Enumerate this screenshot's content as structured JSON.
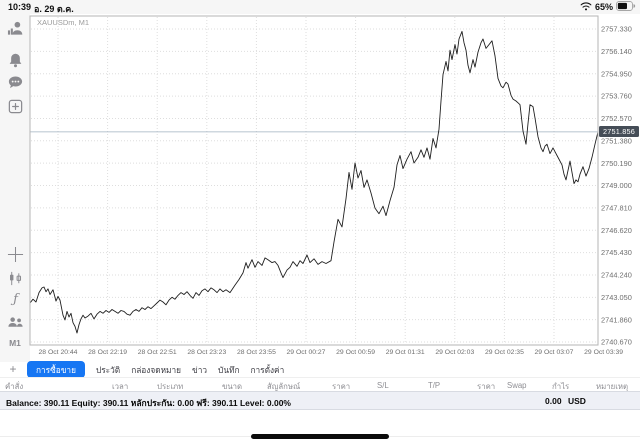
{
  "status_bar": {
    "time": "10:39",
    "date": "อ. 29 ต.ค.",
    "battery_percent": "65%",
    "icons": [
      "wifi-icon",
      "battery-icon"
    ]
  },
  "toolbar": {
    "icons": [
      "account-icon",
      "notifications-icon",
      "chat-icon",
      "new-order-icon",
      "crosshair-icon",
      "indicators-icon",
      "function-icon",
      "objects-icon"
    ],
    "function_glyph": "ƒ",
    "timeframe_label": "M1"
  },
  "chart": {
    "symbol_label": "XAUUSDm, M1",
    "current_price": "2751.856",
    "colors": {
      "line": "#1f1f1f",
      "grid": "#dedede",
      "border": "#b5b5b5",
      "price_line": "#9fb0bf",
      "price_badge_bg": "#454d57",
      "axis_text": "#6e6e6e"
    }
  },
  "chart_data": {
    "type": "line",
    "title": "XAUUSDm, M1",
    "symbol": "XAUUSDm",
    "timeframe": "M1",
    "grid": "dotted",
    "current_price": 2751.856,
    "y_max": 2757.33,
    "y_min": 2740.67,
    "y_tick_step": 1.19,
    "y_tick_labels": [
      "2757.330",
      "2756.140",
      "2754.950",
      "2753.760",
      "2752.570",
      "2751.380",
      "2750.190",
      "2749.000",
      "2747.810",
      "2746.620",
      "2745.430",
      "2744.240",
      "2743.050",
      "2741.860",
      "2740.670"
    ],
    "x_tick_labels": [
      "28 Oct 20:44",
      "28 Oct 22:19",
      "28 Oct 22:51",
      "28 Oct 23:23",
      "28 Oct 23:55",
      "29 Oct 00:27",
      "29 Oct 00:59",
      "29 Oct 01:31",
      "29 Oct 02:03",
      "29 Oct 02:35",
      "29 Oct 03:07",
      "29 Oct 03:39"
    ],
    "series": [
      {
        "name": "XAUUSDm M1 close",
        "points": [
          [
            0,
            2742.75
          ],
          [
            3,
            2742.95
          ],
          [
            6,
            2742.8
          ],
          [
            9,
            2743.3
          ],
          [
            12,
            2743.55
          ],
          [
            14,
            2743.6
          ],
          [
            16,
            2743.35
          ],
          [
            18,
            2743.5
          ],
          [
            20,
            2743.2
          ],
          [
            23,
            2743.45
          ],
          [
            26,
            2742.85
          ],
          [
            28,
            2743.1
          ],
          [
            30,
            2742.9
          ],
          [
            33,
            2742.1
          ],
          [
            35,
            2741.85
          ],
          [
            37,
            2742.3
          ],
          [
            39,
            2742.0
          ],
          [
            41,
            2742.2
          ],
          [
            43,
            2741.7
          ],
          [
            45,
            2741.5
          ],
          [
            47,
            2741.15
          ],
          [
            49,
            2741.6
          ],
          [
            51,
            2741.9
          ],
          [
            53,
            2742.1
          ],
          [
            55,
            2741.95
          ],
          [
            58,
            2742.05
          ],
          [
            61,
            2742.2
          ],
          [
            64,
            2741.9
          ],
          [
            67,
            2742.15
          ],
          [
            70,
            2742.3
          ],
          [
            73,
            2742.2
          ],
          [
            76,
            2742.35
          ],
          [
            79,
            2742.25
          ],
          [
            82,
            2742.4
          ],
          [
            85,
            2742.3
          ],
          [
            88,
            2742.2
          ],
          [
            91,
            2742.35
          ],
          [
            94,
            2742.3
          ],
          [
            97,
            2742.15
          ],
          [
            100,
            2742.1
          ],
          [
            103,
            2742.3
          ],
          [
            106,
            2742.4
          ],
          [
            109,
            2742.3
          ],
          [
            112,
            2742.5
          ],
          [
            115,
            2742.4
          ],
          [
            118,
            2742.55
          ],
          [
            121,
            2742.45
          ],
          [
            124,
            2742.6
          ],
          [
            127,
            2742.75
          ],
          [
            130,
            2742.9
          ],
          [
            133,
            2742.8
          ],
          [
            136,
            2742.65
          ],
          [
            139,
            2742.9
          ],
          [
            142,
            2743.05
          ],
          [
            145,
            2742.95
          ],
          [
            148,
            2743.15
          ],
          [
            151,
            2743.3
          ],
          [
            154,
            2743.2
          ],
          [
            157,
            2743.35
          ],
          [
            160,
            2743.15
          ],
          [
            163,
            2743.0
          ],
          [
            166,
            2743.3
          ],
          [
            169,
            2743.15
          ],
          [
            172,
            2743.4
          ],
          [
            175,
            2743.5
          ],
          [
            178,
            2743.35
          ],
          [
            181,
            2743.55
          ],
          [
            184,
            2743.45
          ],
          [
            187,
            2743.3
          ],
          [
            190,
            2743.5
          ],
          [
            193,
            2743.35
          ],
          [
            196,
            2743.45
          ],
          [
            200,
            2743.3
          ],
          [
            205,
            2743.7
          ],
          [
            209,
            2744.0
          ],
          [
            213,
            2744.35
          ],
          [
            216,
            2744.9
          ],
          [
            218,
            2744.6
          ],
          [
            222,
            2745.05
          ],
          [
            225,
            2744.65
          ],
          [
            228,
            2744.95
          ],
          [
            232,
            2744.75
          ],
          [
            235,
            2745.15
          ],
          [
            238,
            2745.05
          ],
          [
            242,
            2744.9
          ],
          [
            245,
            2744.95
          ],
          [
            248,
            2744.75
          ],
          [
            251,
            2744.35
          ],
          [
            253,
            2744.1
          ],
          [
            257,
            2744.5
          ],
          [
            260,
            2744.65
          ],
          [
            263,
            2744.95
          ],
          [
            267,
            2744.7
          ],
          [
            270,
            2745.0
          ],
          [
            273,
            2744.85
          ],
          [
            277,
            2745.3
          ],
          [
            280,
            2744.9
          ],
          [
            284,
            2745.1
          ],
          [
            288,
            2744.8
          ],
          [
            292,
            2744.95
          ],
          [
            296,
            2744.85
          ],
          [
            301,
            2745.0
          ],
          [
            304,
            2746.0
          ],
          [
            308,
            2747.2
          ],
          [
            312,
            2746.8
          ],
          [
            316,
            2748.3
          ],
          [
            319,
            2749.7
          ],
          [
            322,
            2748.8
          ],
          [
            325,
            2750.2
          ],
          [
            328,
            2749.4
          ],
          [
            331,
            2749.8
          ],
          [
            334,
            2748.9
          ],
          [
            337,
            2749.3
          ],
          [
            341,
            2748.6
          ],
          [
            345,
            2747.8
          ],
          [
            349,
            2747.5
          ],
          [
            353,
            2747.9
          ],
          [
            356,
            2747.4
          ],
          [
            360,
            2748.2
          ],
          [
            364,
            2748.9
          ],
          [
            367,
            2750.1
          ],
          [
            370,
            2750.6
          ],
          [
            373,
            2749.9
          ],
          [
            377,
            2750.4
          ],
          [
            381,
            2750.8
          ],
          [
            384,
            2750.2
          ],
          [
            388,
            2750.5
          ],
          [
            391,
            2750.9
          ],
          [
            394,
            2750.5
          ],
          [
            397,
            2751.0
          ],
          [
            400,
            2750.4
          ],
          [
            403,
            2751.5
          ],
          [
            406,
            2751.0
          ],
          [
            409,
            2752.0
          ],
          [
            411,
            2753.5
          ],
          [
            413,
            2754.9
          ],
          [
            416,
            2755.6
          ],
          [
            418,
            2755.1
          ],
          [
            420,
            2756.2
          ],
          [
            422,
            2755.7
          ],
          [
            425,
            2756.5
          ],
          [
            427,
            2756.0
          ],
          [
            429,
            2756.8
          ],
          [
            432,
            2757.2
          ],
          [
            434,
            2756.6
          ],
          [
            436,
            2756.2
          ],
          [
            438,
            2755.4
          ],
          [
            440,
            2755.0
          ],
          [
            443,
            2755.7
          ],
          [
            445,
            2755.3
          ],
          [
            448,
            2756.1
          ],
          [
            451,
            2756.6
          ],
          [
            453,
            2756.8
          ],
          [
            456,
            2756.3
          ],
          [
            459,
            2756.5
          ],
          [
            462,
            2756.7
          ],
          [
            465,
            2755.9
          ],
          [
            468,
            2754.7
          ],
          [
            471,
            2754.3
          ],
          [
            473,
            2754.2
          ],
          [
            476,
            2754.5
          ],
          [
            478,
            2754.4
          ],
          [
            481,
            2753.8
          ],
          [
            483,
            2753.6
          ],
          [
            486,
            2753.5
          ],
          [
            488,
            2753.4
          ],
          [
            490,
            2753.3
          ],
          [
            493,
            2751.9
          ],
          [
            496,
            2751.2
          ],
          [
            498,
            2752.3
          ],
          [
            500,
            2753.3
          ],
          [
            503,
            2753.2
          ],
          [
            505,
            2752.6
          ],
          [
            508,
            2751.6
          ],
          [
            511,
            2751.0
          ],
          [
            513,
            2750.8
          ],
          [
            515,
            2751.1
          ],
          [
            517,
            2751.2
          ],
          [
            520,
            2750.7
          ],
          [
            523,
            2751.0
          ],
          [
            525,
            2750.8
          ],
          [
            527,
            2750.6
          ],
          [
            530,
            2750.3
          ],
          [
            532,
            2750.1
          ],
          [
            534,
            2749.6
          ],
          [
            536,
            2749.3
          ],
          [
            538,
            2749.8
          ],
          [
            540,
            2750.3
          ],
          [
            542,
            2749.7
          ],
          [
            544,
            2749.1
          ],
          [
            546,
            2749.3
          ],
          [
            548,
            2749.2
          ],
          [
            550,
            2749.6
          ],
          [
            553,
            2750.0
          ],
          [
            556,
            2749.5
          ],
          [
            559,
            2749.9
          ],
          [
            562,
            2750.5
          ],
          [
            565,
            2751.2
          ],
          [
            568,
            2751.856
          ]
        ]
      }
    ]
  },
  "tab_bar": {
    "add_chart_glyph": "+",
    "tabs": [
      {
        "label": "การซื้อขาย",
        "selected": true
      },
      {
        "label": "ประวัติ",
        "selected": false
      },
      {
        "label": "กล่องจดหมาย",
        "selected": false
      },
      {
        "label": "ข่าว",
        "selected": false
      },
      {
        "label": "บันทึก",
        "selected": false
      },
      {
        "label": "การตั้งค่า",
        "selected": false
      }
    ],
    "selected_bg": "#1676f3"
  },
  "trade_table": {
    "headers": [
      "คำสั่ง",
      "เวลา",
      "ประเภท",
      "ขนาด",
      "สัญลักษณ์",
      "ราคา",
      "S/L",
      "T/P",
      "ราคา",
      "Swap",
      "กำไร",
      "หมายเหตุ"
    ]
  },
  "account_bar": {
    "summary": "Balance: 390.11 Equity: 390.11 หลักประกัน: 0.00 ฟรี: 390.11 Level: 0.00%",
    "profit": "0.00",
    "currency": "USD"
  }
}
